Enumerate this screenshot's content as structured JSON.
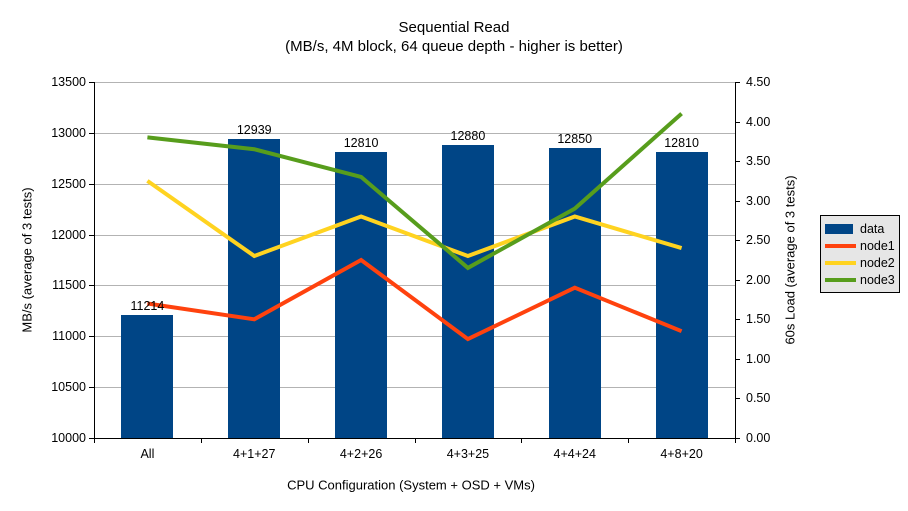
{
  "title": "Sequential Read",
  "subtitle": "(MB/s, 4M block, 64 queue depth - higher is better)",
  "chart_data": {
    "type": "combo-bar-line",
    "categories": [
      "All",
      "4+1+27",
      "4+2+26",
      "4+3+25",
      "4+4+24",
      "4+8+20"
    ],
    "series": [
      {
        "name": "data",
        "type": "bar",
        "axis": "left",
        "color": "#004586",
        "values": [
          11214,
          12939,
          12810,
          12880,
          12850,
          12810
        ],
        "labels": [
          "11214",
          "12939",
          "12810",
          "12880",
          "12850",
          "12810"
        ]
      },
      {
        "name": "node1",
        "type": "line",
        "axis": "right",
        "color": "#FF420E",
        "values": [
          1.7,
          1.5,
          2.25,
          1.25,
          1.9,
          1.35
        ]
      },
      {
        "name": "node2",
        "type": "line",
        "axis": "right",
        "color": "#FFD320",
        "values": [
          3.25,
          2.3,
          2.8,
          2.3,
          2.8,
          2.4
        ]
      },
      {
        "name": "node3",
        "type": "line",
        "axis": "right",
        "color": "#579D1C",
        "values": [
          3.8,
          3.65,
          3.3,
          2.15,
          2.9,
          4.1
        ]
      }
    ],
    "left_axis": {
      "title": "MB/s (average of 3 tests)",
      "min": 10000,
      "max": 13500,
      "tick_step": 500,
      "tick_labels": [
        "13500",
        "13000",
        "12500",
        "12000",
        "11500",
        "11000",
        "10500",
        "10000"
      ]
    },
    "right_axis": {
      "title": "60s Load (average of 3 tests)",
      "min": 0,
      "max": 4.5,
      "tick_step": 0.5,
      "tick_labels": [
        "4.50",
        "4.00",
        "3.50",
        "3.00",
        "2.50",
        "2.00",
        "1.50",
        "1.00",
        "0.50",
        "0.00"
      ]
    },
    "x_axis": {
      "title": "CPU Configuration (System + OSD + VMs)"
    },
    "legend": {
      "position": "right",
      "entries": [
        "data",
        "node1",
        "node2",
        "node3"
      ]
    },
    "grid": "horizontal-on",
    "colors": {
      "gridline": "#b3b3b3",
      "axis": "#000000",
      "legend_bg": "#e6e6e6",
      "background": "#ffffff"
    }
  }
}
